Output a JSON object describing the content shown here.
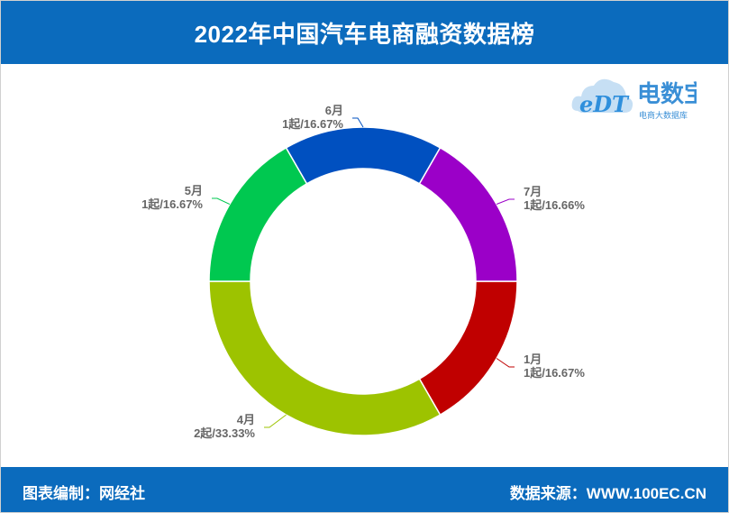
{
  "header": {
    "title": "2022年中国汽车电商融资数据榜"
  },
  "footer": {
    "compiler": "图表编制：网经社",
    "source": "数据来源：WWW.100EC.CN"
  },
  "logo": {
    "mark": "eDT",
    "name": "电数宝",
    "tagline": "电商大数据库"
  },
  "colors": {
    "header_bg": "#0b6bbd",
    "jan": "#c00000",
    "apr": "#9dc300",
    "may": "#00c850",
    "jun": "#0050c0",
    "jul": "#9b00c8"
  },
  "chart_data": {
    "type": "pie",
    "variant": "donut",
    "title": "2022年中国汽车电商融资数据榜",
    "series": [
      {
        "name": "1月",
        "count_label": "1起",
        "percent_label": "16.67%",
        "value": 1,
        "percent": 16.67,
        "color": "#c00000"
      },
      {
        "name": "4月",
        "count_label": "2起",
        "percent_label": "33.33%",
        "value": 2,
        "percent": 33.33,
        "color": "#9dc300"
      },
      {
        "name": "5月",
        "count_label": "1起",
        "percent_label": "16.67%",
        "value": 1,
        "percent": 16.67,
        "color": "#00c850"
      },
      {
        "name": "6月",
        "count_label": "1起",
        "percent_label": "16.67%",
        "value": 1,
        "percent": 16.67,
        "color": "#0050c0"
      },
      {
        "name": "7月",
        "count_label": "1起",
        "percent_label": "16.66%",
        "value": 1,
        "percent": 16.66,
        "color": "#9b00c8"
      }
    ],
    "start": "3 o'clock",
    "direction": "clockwise",
    "legend": "none"
  }
}
